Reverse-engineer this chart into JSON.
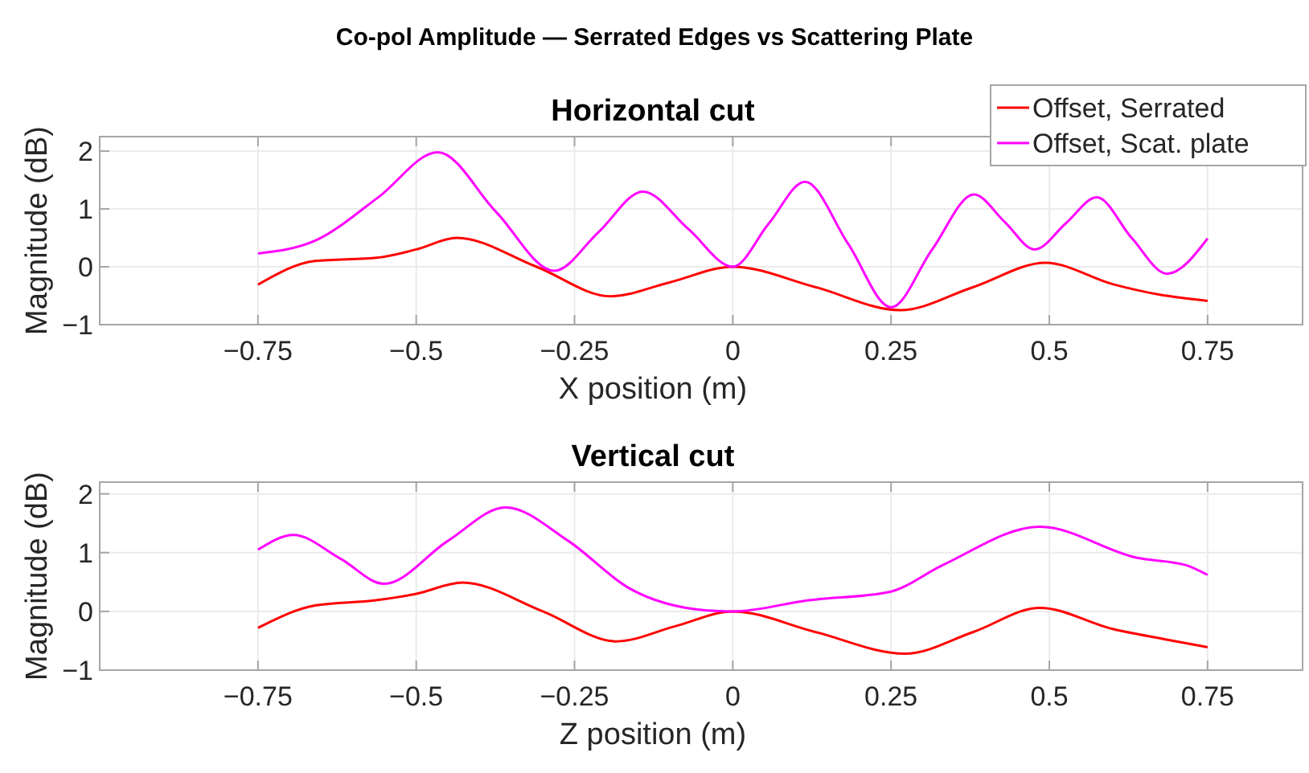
{
  "chart_data": [
    {
      "type": "line",
      "title": "Co-pol Amplitude — Serrated Edges vs Scattering Plate",
      "subtitle": "Horizontal cut",
      "xlabel": "X position (m)",
      "ylabel": "Magnitude (dB)",
      "xlim": [
        -1,
        0.9
      ],
      "ylim": [
        -1,
        2.25
      ],
      "xticks": [
        -0.75,
        -0.5,
        -0.25,
        0,
        0.25,
        0.5,
        0.75
      ],
      "yticks": [
        -1,
        0,
        1,
        2
      ],
      "grid": true,
      "legend": "top right",
      "line_style": "solid",
      "series": [
        {
          "name": "Offset, Serrated",
          "color": "#ff0000",
          "x": [
            -0.75,
            -0.66,
            -0.56,
            -0.5,
            -0.436,
            -0.31,
            -0.193,
            -0.1,
            0,
            0.13,
            0.264,
            0.38,
            0.494,
            0.6,
            0.673,
            0.75
          ],
          "values": [
            -0.31,
            0.1,
            0.16,
            0.3,
            0.5,
            0.0,
            -0.51,
            -0.27,
            0.0,
            -0.35,
            -0.75,
            -0.35,
            0.07,
            -0.3,
            -0.48,
            -0.59
          ]
        },
        {
          "name": "Offset, Scat. plate",
          "color": "#ff00ff",
          "x": [
            -0.75,
            -0.658,
            -0.56,
            -0.466,
            -0.374,
            -0.282,
            -0.212,
            -0.142,
            -0.07,
            0,
            0.057,
            0.114,
            0.182,
            0.25,
            0.315,
            0.381,
            0.429,
            0.477,
            0.526,
            0.575,
            0.63,
            0.686,
            0.75
          ],
          "values": [
            0.23,
            0.46,
            1.2,
            1.98,
            0.95,
            -0.07,
            0.6,
            1.3,
            0.65,
            0.0,
            0.75,
            1.47,
            0.4,
            -0.7,
            0.3,
            1.25,
            0.78,
            0.3,
            0.75,
            1.2,
            0.5,
            -0.12,
            0.49
          ]
        }
      ]
    },
    {
      "type": "line",
      "title": "Vertical cut",
      "xlabel": "Z position (m)",
      "ylabel": "Magnitude (dB)",
      "xlim": [
        -1,
        0.9
      ],
      "ylim": [
        -1,
        2.2
      ],
      "xticks": [
        -0.75,
        -0.5,
        -0.25,
        0,
        0.25,
        0.5,
        0.75
      ],
      "yticks": [
        -1,
        0,
        1,
        2
      ],
      "grid": true,
      "line_style": "solid",
      "series": [
        {
          "color": "#ff0000",
          "x": [
            -0.75,
            -0.66,
            -0.564,
            -0.5,
            -0.427,
            -0.3,
            -0.184,
            -0.09,
            0,
            0.13,
            0.272,
            0.38,
            0.485,
            0.6,
            0.68,
            0.75
          ],
          "values": [
            -0.28,
            0.1,
            0.19,
            0.3,
            0.49,
            0.0,
            -0.51,
            -0.25,
            0.0,
            -0.35,
            -0.72,
            -0.35,
            0.06,
            -0.3,
            -0.47,
            -0.61
          ]
        },
        {
          "color": "#ff00ff",
          "x": [
            -0.75,
            -0.694,
            -0.62,
            -0.551,
            -0.45,
            -0.359,
            -0.26,
            -0.163,
            -0.044,
            0,
            0.12,
            0.247,
            0.332,
            0.485,
            0.639,
            0.715,
            0.75
          ],
          "values": [
            1.05,
            1.3,
            0.9,
            0.47,
            1.2,
            1.77,
            1.2,
            0.39,
            0.02,
            0.0,
            0.19,
            0.33,
            0.79,
            1.44,
            0.91,
            0.79,
            0.62
          ]
        }
      ]
    }
  ]
}
